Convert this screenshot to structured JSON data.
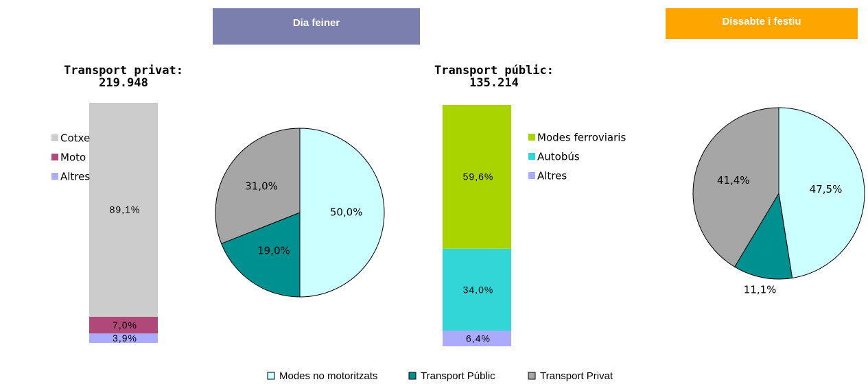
{
  "header": {
    "weekday": "Dia feiner",
    "weekend": "Dissabte i festiu"
  },
  "chart_data": [
    {
      "type": "stacked_bar",
      "title": [
        "Transport privat:",
        "219.948"
      ],
      "series": [
        {
          "name": "Cotxe",
          "color": "#cccccc",
          "values": [
            89.1
          ],
          "value_labels": [
            "89,1%"
          ]
        },
        {
          "name": "Moto",
          "color": "#b0487a",
          "values": [
            7.0
          ],
          "value_labels": [
            "7,0%"
          ]
        },
        {
          "name": "Altres",
          "color": "#aaaaff",
          "values": [
            3.9
          ],
          "value_labels": [
            "3,9%"
          ]
        }
      ]
    },
    {
      "type": "pie",
      "categories": [
        "Modes no motoritzats",
        "Transport Públic",
        "Transport Privat"
      ],
      "colors": [
        "#ccffff",
        "#009090",
        "#a6a6a6"
      ],
      "values": [
        50.0,
        19.0,
        31.0
      ],
      "value_labels": [
        "50,0%",
        "19,0%",
        "31,0%"
      ],
      "legend": "bottom"
    },
    {
      "type": "stacked_bar",
      "title": [
        "Transport públic:",
        "135.214"
      ],
      "series": [
        {
          "name": "Modes ferroviaris",
          "color": "#aad400",
          "values": [
            59.6
          ],
          "value_labels": [
            "59,6%"
          ]
        },
        {
          "name": "Autobús",
          "color": "#33d6d6",
          "values": [
            34.0
          ],
          "value_labels": [
            "34,0%"
          ]
        },
        {
          "name": "Altres",
          "color": "#aaaaff",
          "values": [
            6.4
          ],
          "value_labels": [
            "6,4%"
          ]
        }
      ]
    },
    {
      "type": "pie",
      "categories": [
        "Modes no motoritzats",
        "Transport Públic",
        "Transport Privat"
      ],
      "colors": [
        "#ccffff",
        "#009090",
        "#a6a6a6"
      ],
      "values": [
        47.5,
        11.1,
        41.4
      ],
      "value_labels": [
        "47,5%",
        "11,1%",
        "41,4%"
      ]
    }
  ]
}
